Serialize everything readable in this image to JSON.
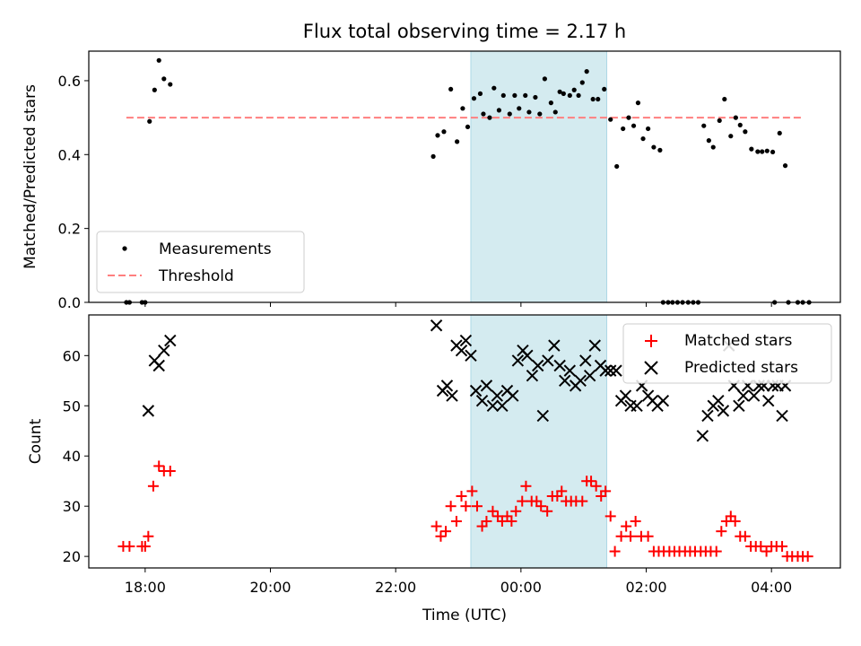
{
  "chart_data": [
    {
      "type": "scatter",
      "title": "Flux total observing time = 2.17 h",
      "xlabel": "",
      "ylabel": "Matched/Predicted stars",
      "xlim": [
        -6.9,
        5.1
      ],
      "ylim": [
        0.0,
        0.68
      ],
      "yticks": [
        0.0,
        0.2,
        0.4,
        0.6
      ],
      "shaded_region": [
        -0.8,
        1.37
      ],
      "legend_position": "lower-left",
      "series": [
        {
          "name": "Measurements",
          "color": "#000000",
          "marker": "dot",
          "points": [
            [
              -6.3,
              0.0
            ],
            [
              -6.25,
              0.0
            ],
            [
              -6.05,
              0.0
            ],
            [
              -6.0,
              0.0
            ],
            [
              -5.93,
              0.49
            ],
            [
              -5.85,
              0.575
            ],
            [
              -5.78,
              0.655
            ],
            [
              -5.7,
              0.605
            ],
            [
              -5.6,
              0.59
            ],
            [
              -1.4,
              0.395
            ],
            [
              -1.33,
              0.452
            ],
            [
              -1.23,
              0.462
            ],
            [
              -1.12,
              0.577
            ],
            [
              -1.02,
              0.435
            ],
            [
              -0.93,
              0.525
            ],
            [
              -0.85,
              0.475
            ],
            [
              -0.75,
              0.552
            ],
            [
              -0.65,
              0.565
            ],
            [
              -0.6,
              0.51
            ],
            [
              -0.5,
              0.5
            ],
            [
              -0.43,
              0.58
            ],
            [
              -0.35,
              0.52
            ],
            [
              -0.28,
              0.56
            ],
            [
              -0.18,
              0.51
            ],
            [
              -0.1,
              0.56
            ],
            [
              -0.03,
              0.525
            ],
            [
              0.07,
              0.56
            ],
            [
              0.13,
              0.515
            ],
            [
              0.23,
              0.555
            ],
            [
              0.3,
              0.51
            ],
            [
              0.38,
              0.605
            ],
            [
              0.48,
              0.54
            ],
            [
              0.55,
              0.515
            ],
            [
              0.62,
              0.57
            ],
            [
              0.68,
              0.565
            ],
            [
              0.78,
              0.56
            ],
            [
              0.85,
              0.575
            ],
            [
              0.92,
              0.56
            ],
            [
              0.98,
              0.595
            ],
            [
              1.05,
              0.625
            ],
            [
              1.15,
              0.55
            ],
            [
              1.23,
              0.55
            ],
            [
              1.33,
              0.577
            ],
            [
              1.43,
              0.495
            ],
            [
              1.53,
              0.368
            ],
            [
              1.63,
              0.47
            ],
            [
              1.72,
              0.5
            ],
            [
              1.8,
              0.478
            ],
            [
              1.87,
              0.54
            ],
            [
              1.95,
              0.443
            ],
            [
              2.03,
              0.47
            ],
            [
              2.12,
              0.42
            ],
            [
              2.22,
              0.412
            ],
            [
              2.27,
              0.0
            ],
            [
              2.35,
              0.0
            ],
            [
              2.42,
              0.0
            ],
            [
              2.5,
              0.0
            ],
            [
              2.58,
              0.0
            ],
            [
              2.67,
              0.0
            ],
            [
              2.75,
              0.0
            ],
            [
              2.83,
              0.0
            ],
            [
              2.92,
              0.478
            ],
            [
              3.0,
              0.438
            ],
            [
              3.07,
              0.42
            ],
            [
              3.17,
              0.492
            ],
            [
              3.25,
              0.55
            ],
            [
              3.35,
              0.45
            ],
            [
              3.43,
              0.5
            ],
            [
              3.5,
              0.48
            ],
            [
              3.58,
              0.462
            ],
            [
              3.68,
              0.415
            ],
            [
              3.78,
              0.408
            ],
            [
              3.85,
              0.408
            ],
            [
              3.93,
              0.41
            ],
            [
              4.02,
              0.407
            ],
            [
              4.13,
              0.458
            ],
            [
              4.22,
              0.37
            ],
            [
              4.05,
              0.0
            ],
            [
              4.27,
              0.0
            ],
            [
              4.42,
              0.0
            ],
            [
              4.5,
              0.0
            ],
            [
              4.6,
              0.0
            ]
          ]
        },
        {
          "name": "Threshold",
          "color": "#ff7f7f",
          "style": "dashed",
          "x": [
            -6.3,
            4.5
          ],
          "y": [
            0.5,
            0.5
          ]
        }
      ]
    },
    {
      "type": "scatter",
      "title": "",
      "xlabel": "Time (UTC)",
      "ylabel": "Count",
      "xlim": [
        -6.9,
        5.1
      ],
      "ylim": [
        17.7,
        68.1
      ],
      "yticks": [
        20,
        30,
        40,
        50,
        60
      ],
      "xticks": [
        -6,
        -4,
        -2,
        0,
        2,
        4
      ],
      "xtick_labels": [
        "18:00",
        "20:00",
        "22:00",
        "00:00",
        "02:00",
        "04:00"
      ],
      "shaded_region": [
        -0.8,
        1.37
      ],
      "legend_position": "upper-right",
      "series": [
        {
          "name": "Matched stars",
          "color": "#ff0000",
          "marker": "plus",
          "points": [
            [
              -6.35,
              22
            ],
            [
              -6.25,
              22
            ],
            [
              -6.05,
              22
            ],
            [
              -6.0,
              22
            ],
            [
              -5.95,
              24
            ],
            [
              -5.87,
              34
            ],
            [
              -5.78,
              38
            ],
            [
              -5.7,
              37
            ],
            [
              -5.6,
              37
            ],
            [
              -1.35,
              26
            ],
            [
              -1.28,
              24
            ],
            [
              -1.2,
              25
            ],
            [
              -1.12,
              30
            ],
            [
              -1.03,
              27
            ],
            [
              -0.95,
              32
            ],
            [
              -0.88,
              30
            ],
            [
              -0.78,
              33
            ],
            [
              -0.7,
              30
            ],
            [
              -0.62,
              26
            ],
            [
              -0.55,
              27
            ],
            [
              -0.45,
              29
            ],
            [
              -0.37,
              28
            ],
            [
              -0.3,
              27
            ],
            [
              -0.22,
              28
            ],
            [
              -0.15,
              27
            ],
            [
              -0.08,
              29
            ],
            [
              0.02,
              31
            ],
            [
              0.08,
              34
            ],
            [
              0.17,
              31
            ],
            [
              0.25,
              31
            ],
            [
              0.32,
              30
            ],
            [
              0.42,
              29
            ],
            [
              0.5,
              32
            ],
            [
              0.58,
              32
            ],
            [
              0.65,
              33
            ],
            [
              0.72,
              31
            ],
            [
              0.8,
              31
            ],
            [
              0.88,
              31
            ],
            [
              0.98,
              31
            ],
            [
              1.05,
              35
            ],
            [
              1.12,
              35
            ],
            [
              1.2,
              34
            ],
            [
              1.28,
              32
            ],
            [
              1.35,
              33
            ],
            [
              1.43,
              28
            ],
            [
              1.5,
              21
            ],
            [
              1.6,
              24
            ],
            [
              1.68,
              26
            ],
            [
              1.75,
              24
            ],
            [
              1.83,
              27
            ],
            [
              1.92,
              24
            ],
            [
              2.03,
              24
            ],
            [
              2.12,
              21
            ],
            [
              2.2,
              21
            ],
            [
              2.28,
              21
            ],
            [
              2.37,
              21
            ],
            [
              2.45,
              21
            ],
            [
              2.53,
              21
            ],
            [
              2.62,
              21
            ],
            [
              2.7,
              21
            ],
            [
              2.78,
              21
            ],
            [
              2.87,
              21
            ],
            [
              2.95,
              21
            ],
            [
              3.03,
              21
            ],
            [
              3.12,
              21
            ],
            [
              3.2,
              25
            ],
            [
              3.28,
              27
            ],
            [
              3.35,
              28
            ],
            [
              3.42,
              27
            ],
            [
              3.5,
              24
            ],
            [
              3.58,
              24
            ],
            [
              3.67,
              22
            ],
            [
              3.75,
              22
            ],
            [
              3.83,
              22
            ],
            [
              3.92,
              21
            ],
            [
              4.0,
              22
            ],
            [
              4.08,
              22
            ],
            [
              4.17,
              22
            ],
            [
              4.25,
              20
            ],
            [
              4.33,
              20
            ],
            [
              4.42,
              20
            ],
            [
              4.5,
              20
            ],
            [
              4.58,
              20
            ]
          ]
        },
        {
          "name": "Predicted stars",
          "color": "#000000",
          "marker": "x",
          "points": [
            [
              -5.95,
              49
            ],
            [
              -5.85,
              59
            ],
            [
              -5.78,
              58
            ],
            [
              -5.7,
              61
            ],
            [
              -5.6,
              63
            ],
            [
              -1.35,
              66
            ],
            [
              -1.25,
              53
            ],
            [
              -1.18,
              54
            ],
            [
              -1.1,
              52
            ],
            [
              -1.03,
              62
            ],
            [
              -0.95,
              61
            ],
            [
              -0.88,
              63
            ],
            [
              -0.8,
              60
            ],
            [
              -0.72,
              53
            ],
            [
              -0.62,
              51
            ],
            [
              -0.55,
              54
            ],
            [
              -0.45,
              50
            ],
            [
              -0.38,
              52
            ],
            [
              -0.3,
              50
            ],
            [
              -0.22,
              53
            ],
            [
              -0.13,
              52
            ],
            [
              -0.05,
              59
            ],
            [
              0.03,
              61
            ],
            [
              0.1,
              60
            ],
            [
              0.18,
              56
            ],
            [
              0.27,
              58
            ],
            [
              0.35,
              48
            ],
            [
              0.43,
              59
            ],
            [
              0.53,
              62
            ],
            [
              0.62,
              58
            ],
            [
              0.7,
              55
            ],
            [
              0.78,
              57
            ],
            [
              0.87,
              54
            ],
            [
              0.95,
              55
            ],
            [
              1.03,
              59
            ],
            [
              1.1,
              56
            ],
            [
              1.18,
              62
            ],
            [
              1.27,
              58
            ],
            [
              1.35,
              57
            ],
            [
              1.43,
              57
            ],
            [
              1.52,
              57
            ],
            [
              1.6,
              51
            ],
            [
              1.67,
              52
            ],
            [
              1.75,
              50
            ],
            [
              1.85,
              50
            ],
            [
              1.93,
              54
            ],
            [
              2.03,
              52
            ],
            [
              2.1,
              51
            ],
            [
              2.18,
              50
            ],
            [
              2.27,
              51
            ],
            [
              2.9,
              44
            ],
            [
              2.98,
              48
            ],
            [
              3.07,
              50
            ],
            [
              3.15,
              51
            ],
            [
              3.23,
              49
            ],
            [
              3.32,
              62
            ],
            [
              3.4,
              54
            ],
            [
              3.48,
              50
            ],
            [
              3.55,
              52
            ],
            [
              3.62,
              54
            ],
            [
              3.72,
              52
            ],
            [
              3.8,
              54
            ],
            [
              3.88,
              54
            ],
            [
              3.95,
              51
            ],
            [
              4.02,
              54
            ],
            [
              4.1,
              54
            ],
            [
              4.17,
              48
            ],
            [
              4.22,
              54
            ]
          ]
        }
      ]
    }
  ]
}
